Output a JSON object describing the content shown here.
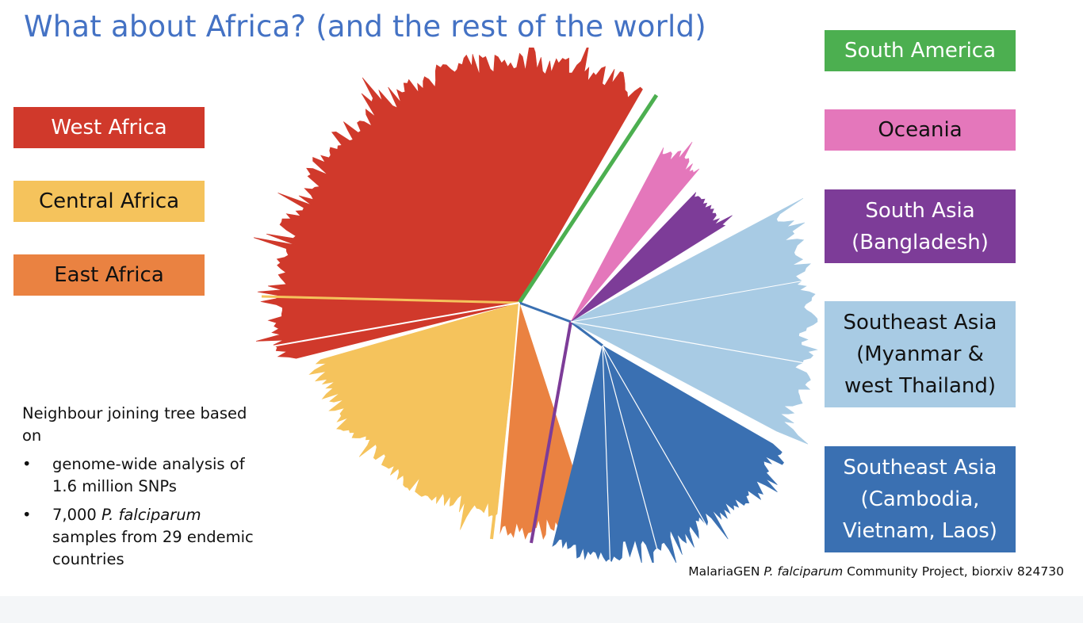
{
  "slide": {
    "title": "What about Africa? (and the rest of the world)"
  },
  "legend_left": [
    {
      "key": "west-africa",
      "label": "West Africa",
      "color": "#d0392b",
      "text_color": "#ffffff"
    },
    {
      "key": "central-africa",
      "label": "Central Africa",
      "color": "#f5c35c",
      "text_color": "#111111"
    },
    {
      "key": "east-africa",
      "label": "East Africa",
      "color": "#ea8241",
      "text_color": "#111111"
    }
  ],
  "legend_right": [
    {
      "key": "south-america",
      "lines": [
        "South America"
      ],
      "color": "#4caf50",
      "text_color": "#ffffff"
    },
    {
      "key": "oceania",
      "lines": [
        "Oceania"
      ],
      "color": "#e477bb",
      "text_color": "#111111"
    },
    {
      "key": "south-asia",
      "lines": [
        "South Asia",
        "(Bangladesh)"
      ],
      "color": "#7d3c98",
      "text_color": "#ffffff"
    },
    {
      "key": "southeast-asia-west",
      "lines": [
        "Southeast Asia",
        "(Myanmar &",
        "west Thailand)"
      ],
      "color": "#a8cbe4",
      "text_color": "#111111"
    },
    {
      "key": "southeast-asia-east",
      "lines": [
        "Southeast Asia",
        "(Cambodia,",
        "Vietnam, Laos)"
      ],
      "color": "#3a70b2",
      "text_color": "#ffffff"
    }
  ],
  "notes": {
    "intro": "Neighbour joining tree based on",
    "bullet_glyph": "•",
    "bullet1": "genome-wide analysis of   1.6 million SNPs",
    "bullet2_prefix": "7,000 ",
    "bullet2_italic": "P. falciparum",
    "bullet2_suffix": " samples from 29 endemic countries"
  },
  "citation": {
    "prefix": "MalariaGEN ",
    "italic": "P. falciparum",
    "suffix": " Community Project, biorxiv 824730"
  }
}
